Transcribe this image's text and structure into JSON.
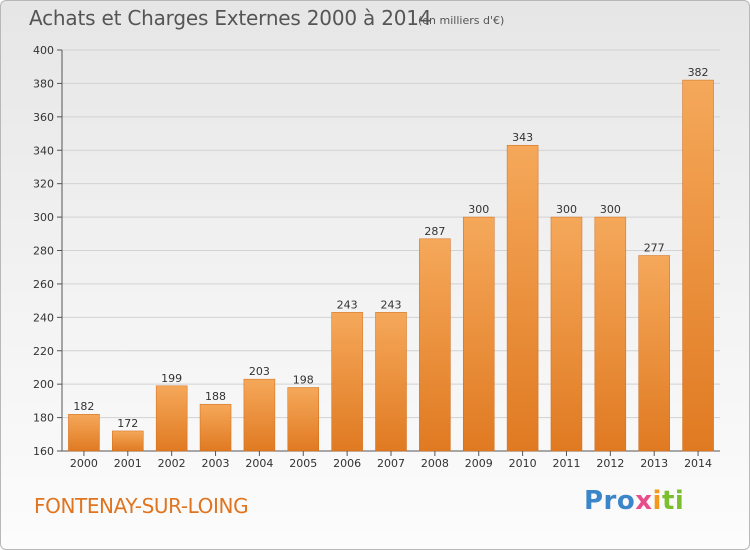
{
  "header": {
    "title": "Achats et Charges Externes 2000 à 2014",
    "subtitle": "(en milliers d'€)"
  },
  "footer": {
    "place": "FONTENAY-SUR-LOING",
    "logo_text": "Proxiti"
  },
  "colors": {
    "bar_light": "#f5a85a",
    "bar_dark": "#e07a22",
    "place_text": "#e0741f"
  },
  "chart_data": {
    "type": "bar",
    "title": "Achats et Charges Externes 2000 à 2014",
    "subtitle": "(en milliers d'€)",
    "xlabel": "",
    "ylabel": "",
    "categories": [
      "2000",
      "2001",
      "2002",
      "2003",
      "2004",
      "2005",
      "2006",
      "2007",
      "2008",
      "2009",
      "2010",
      "2011",
      "2012",
      "2013",
      "2014"
    ],
    "values": [
      182,
      172,
      199,
      188,
      203,
      198,
      243,
      243,
      287,
      300,
      343,
      300,
      300,
      277,
      382
    ],
    "ylim": [
      160,
      400
    ],
    "yticks": [
      160,
      180,
      200,
      220,
      240,
      260,
      280,
      300,
      320,
      340,
      360,
      380,
      400
    ],
    "grid": true,
    "legend": "none"
  }
}
